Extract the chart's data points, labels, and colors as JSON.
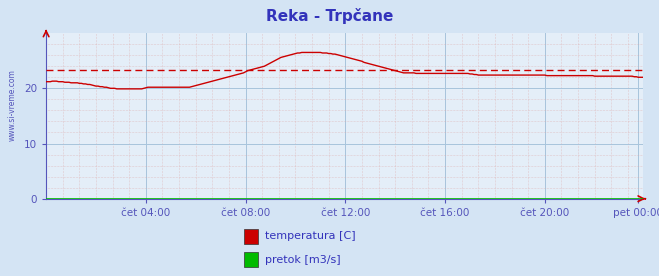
{
  "title": "Reka - Trpčane",
  "background_color": "#d4e4f4",
  "plot_bg_color": "#e4eef8",
  "watermark": "www.si-vreme.com",
  "xlabel_ticks": [
    "čet 04:00",
    "čet 08:00",
    "čet 12:00",
    "čet 16:00",
    "čet 20:00",
    "pet 00:00"
  ],
  "yticks": [
    0,
    10,
    20
  ],
  "ylim": [
    0,
    30
  ],
  "xlim": [
    0,
    287
  ],
  "avg_line_y": 23.3,
  "legend_items": [
    {
      "label": "temperatura [C]",
      "color": "#cc0000"
    },
    {
      "label": "pretok [m3/s]",
      "color": "#00bb00"
    }
  ],
  "tick_positions_x": [
    48,
    96,
    144,
    192,
    240,
    285
  ],
  "num_points": 288,
  "temp_data": [
    21.2,
    21.2,
    21.2,
    21.3,
    21.3,
    21.3,
    21.2,
    21.2,
    21.2,
    21.1,
    21.1,
    21.1,
    21.0,
    21.0,
    21.0,
    21.0,
    20.9,
    20.9,
    20.8,
    20.8,
    20.7,
    20.7,
    20.6,
    20.5,
    20.4,
    20.4,
    20.3,
    20.3,
    20.2,
    20.2,
    20.1,
    20.0,
    20.0,
    20.0,
    19.9,
    19.9,
    19.9,
    19.9,
    19.9,
    19.9,
    19.9,
    19.9,
    19.9,
    19.9,
    19.9,
    19.9,
    19.9,
    20.0,
    20.1,
    20.2,
    20.2,
    20.2,
    20.2,
    20.2,
    20.2,
    20.2,
    20.2,
    20.2,
    20.2,
    20.2,
    20.2,
    20.2,
    20.2,
    20.2,
    20.2,
    20.2,
    20.2,
    20.2,
    20.2,
    20.2,
    20.3,
    20.4,
    20.5,
    20.6,
    20.7,
    20.8,
    20.9,
    21.0,
    21.1,
    21.2,
    21.3,
    21.4,
    21.5,
    21.6,
    21.7,
    21.8,
    21.9,
    22.0,
    22.1,
    22.2,
    22.3,
    22.4,
    22.5,
    22.6,
    22.7,
    22.8,
    23.0,
    23.2,
    23.3,
    23.4,
    23.5,
    23.6,
    23.7,
    23.8,
    23.9,
    24.0,
    24.2,
    24.4,
    24.6,
    24.8,
    25.0,
    25.2,
    25.4,
    25.6,
    25.7,
    25.8,
    25.9,
    26.0,
    26.1,
    26.2,
    26.3,
    26.4,
    26.4,
    26.5,
    26.5,
    26.5,
    26.5,
    26.5,
    26.5,
    26.5,
    26.5,
    26.5,
    26.5,
    26.4,
    26.4,
    26.4,
    26.3,
    26.3,
    26.2,
    26.2,
    26.1,
    26.0,
    25.9,
    25.8,
    25.7,
    25.6,
    25.5,
    25.4,
    25.3,
    25.2,
    25.1,
    25.0,
    24.9,
    24.7,
    24.6,
    24.5,
    24.4,
    24.3,
    24.2,
    24.1,
    24.0,
    23.9,
    23.8,
    23.7,
    23.6,
    23.5,
    23.4,
    23.3,
    23.2,
    23.1,
    23.0,
    22.9,
    22.8,
    22.8,
    22.8,
    22.8,
    22.8,
    22.8,
    22.7,
    22.7,
    22.7,
    22.7,
    22.7,
    22.7,
    22.7,
    22.7,
    22.7,
    22.7,
    22.7,
    22.7,
    22.7,
    22.7,
    22.7,
    22.7,
    22.7,
    22.7,
    22.7,
    22.7,
    22.7,
    22.7,
    22.7,
    22.7,
    22.7,
    22.7,
    22.6,
    22.6,
    22.5,
    22.5,
    22.4,
    22.4,
    22.4,
    22.4,
    22.4,
    22.4,
    22.4,
    22.4,
    22.4,
    22.4,
    22.4,
    22.4,
    22.4,
    22.4,
    22.4,
    22.4,
    22.4,
    22.4,
    22.4,
    22.4,
    22.4,
    22.4,
    22.4,
    22.4,
    22.4,
    22.4,
    22.4,
    22.4,
    22.4,
    22.4,
    22.4,
    22.4,
    22.4,
    22.3,
    22.3,
    22.3,
    22.3,
    22.3,
    22.3,
    22.3,
    22.3,
    22.3,
    22.3,
    22.3,
    22.3,
    22.3,
    22.3,
    22.3,
    22.3,
    22.3,
    22.3,
    22.3,
    22.3,
    22.3,
    22.3,
    22.3,
    22.2,
    22.2,
    22.2,
    22.2,
    22.2,
    22.2,
    22.2,
    22.2,
    22.2,
    22.2,
    22.2,
    22.2,
    22.2,
    22.2,
    22.2,
    22.2,
    22.2,
    22.2,
    22.2,
    22.1,
    22.1,
    22.0,
    22.0,
    22.0
  ],
  "flow_data_value": 0.0
}
